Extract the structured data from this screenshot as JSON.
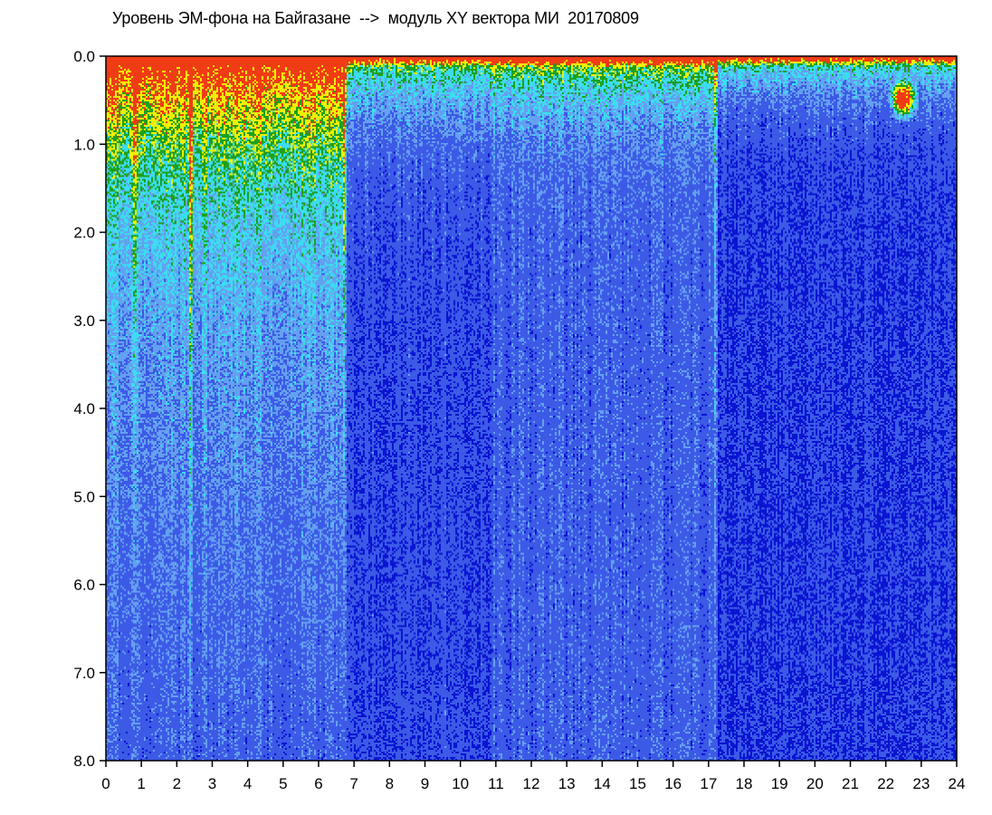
{
  "chart_data": {
    "type": "heatmap",
    "title": "Уровень ЭМ-фона на Байгазане  -->  модуль XY вектора МИ  20170809",
    "xlabel": "",
    "ylabel": "",
    "xlim": [
      0,
      24
    ],
    "ylim": [
      0,
      8
    ],
    "y_inverted": true,
    "x_ticks": [
      "0",
      "1",
      "2",
      "3",
      "4",
      "5",
      "6",
      "7",
      "8",
      "9",
      "10",
      "11",
      "12",
      "13",
      "14",
      "15",
      "16",
      "17",
      "18",
      "19",
      "20",
      "21",
      "22",
      "23",
      "24"
    ],
    "y_ticks": [
      "0.0",
      "1.0",
      "2.0",
      "3.0",
      "4.0",
      "5.0",
      "6.0",
      "7.0",
      "8.0"
    ],
    "grid": false,
    "legend": "none",
    "colormap": [
      "#0a14d2",
      "#3c5ae6",
      "#64a0f0",
      "#3cdcf0",
      "#1ea01e",
      "#f0f000",
      "#f03c14",
      "#ffffff"
    ],
    "segments": [
      {
        "x_start": 0.0,
        "x_end": 6.75,
        "description_level": "high",
        "top_noise_depth": 2.5
      },
      {
        "x_start": 6.75,
        "x_end": 10.9,
        "description_level": "low",
        "top_noise_depth": 1.2
      },
      {
        "x_start": 10.9,
        "x_end": 17.2,
        "description_level": "medium-low",
        "top_noise_depth": 1.0
      },
      {
        "x_start": 17.2,
        "x_end": 24.0,
        "description_level": "lowest",
        "top_noise_depth": 0.8
      }
    ],
    "bright_vertical_lines_x": [
      0.8,
      2.4,
      6.75,
      17.2
    ],
    "saturated_blob": {
      "x": 22.5,
      "y": 0.5
    }
  }
}
